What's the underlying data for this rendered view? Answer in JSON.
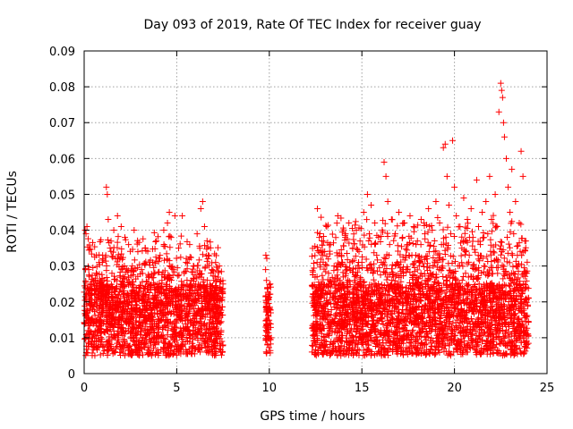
{
  "chart_data": {
    "type": "scatter",
    "title": "Day 093 of 2019, Rate Of TEC Index for receiver guay",
    "xlabel": "GPS time / hours",
    "ylabel": "ROTI / TECUs",
    "xlim": [
      0,
      25
    ],
    "ylim": [
      0,
      0.09
    ],
    "xticks": [
      0,
      5,
      10,
      15,
      20,
      25
    ],
    "xtick_labels": [
      "0",
      "5",
      "10",
      "15",
      "20",
      "25"
    ],
    "yticks": [
      0,
      0.01,
      0.02,
      0.03,
      0.04,
      0.05,
      0.06,
      0.07,
      0.08,
      0.09
    ],
    "ytick_labels": [
      "0",
      "0.01",
      "0.02",
      "0.03",
      "0.04",
      "0.05",
      "0.06",
      "0.07",
      "0.08",
      "0.09"
    ],
    "grid": true,
    "marker": "+",
    "marker_color": "#ff0000",
    "series": [
      {
        "name": "ROTI",
        "points": [
          [
            0.05,
            0.04
          ],
          [
            0.1,
            0.039
          ],
          [
            0.15,
            0.041
          ],
          [
            0.2,
            0.012
          ],
          [
            0.25,
            0.029
          ],
          [
            0.3,
            0.018
          ],
          [
            0.4,
            0.022
          ],
          [
            0.5,
            0.011
          ],
          [
            0.6,
            0.026
          ],
          [
            0.7,
            0.015
          ],
          [
            0.8,
            0.031
          ],
          [
            0.9,
            0.02
          ],
          [
            1.0,
            0.033
          ],
          [
            1.1,
            0.024
          ],
          [
            1.2,
            0.052
          ],
          [
            1.25,
            0.05
          ],
          [
            1.3,
            0.043
          ],
          [
            1.4,
            0.035
          ],
          [
            1.5,
            0.028
          ],
          [
            1.6,
            0.04
          ],
          [
            1.7,
            0.019
          ],
          [
            1.8,
            0.044
          ],
          [
            1.9,
            0.032
          ],
          [
            2.0,
            0.041
          ],
          [
            2.1,
            0.027
          ],
          [
            2.2,
            0.038
          ],
          [
            2.3,
            0.014
          ],
          [
            2.4,
            0.036
          ],
          [
            2.5,
            0.025
          ],
          [
            2.6,
            0.03
          ],
          [
            2.7,
            0.04
          ],
          [
            2.8,
            0.021
          ],
          [
            2.9,
            0.034
          ],
          [
            3.0,
            0.016
          ],
          [
            3.1,
            0.029
          ],
          [
            3.2,
            0.023
          ],
          [
            3.3,
            0.035
          ],
          [
            3.4,
            0.012
          ],
          [
            3.5,
            0.027
          ],
          [
            3.6,
            0.018
          ],
          [
            3.7,
            0.031
          ],
          [
            3.8,
            0.024
          ],
          [
            3.9,
            0.037
          ],
          [
            4.0,
            0.015
          ],
          [
            4.1,
            0.033
          ],
          [
            4.2,
            0.026
          ],
          [
            4.3,
            0.04
          ],
          [
            4.4,
            0.02
          ],
          [
            4.5,
            0.042
          ],
          [
            4.6,
            0.045
          ],
          [
            4.7,
            0.038
          ],
          [
            4.8,
            0.029
          ],
          [
            4.9,
            0.044
          ],
          [
            5.0,
            0.017
          ],
          [
            5.1,
            0.035
          ],
          [
            5.2,
            0.022
          ],
          [
            5.3,
            0.044
          ],
          [
            5.4,
            0.028
          ],
          [
            5.5,
            0.031
          ],
          [
            5.6,
            0.013
          ],
          [
            5.7,
            0.036
          ],
          [
            5.8,
            0.024
          ],
          [
            5.9,
            0.03
          ],
          [
            6.0,
            0.019
          ],
          [
            6.1,
            0.039
          ],
          [
            6.2,
            0.027
          ],
          [
            6.3,
            0.046
          ],
          [
            6.4,
            0.048
          ],
          [
            6.5,
            0.041
          ],
          [
            6.6,
            0.021
          ],
          [
            6.7,
            0.033
          ],
          [
            6.8,
            0.015
          ],
          [
            6.9,
            0.029
          ],
          [
            7.0,
            0.026
          ],
          [
            7.1,
            0.031
          ],
          [
            7.2,
            0.018
          ],
          [
            7.3,
            0.03
          ],
          [
            7.4,
            0.012
          ],
          [
            7.5,
            0.025
          ],
          [
            9.8,
            0.029
          ],
          [
            9.85,
            0.026
          ],
          [
            9.9,
            0.024
          ],
          [
            9.95,
            0.021
          ],
          [
            10.0,
            0.018
          ],
          [
            10.05,
            0.025
          ],
          [
            10.1,
            0.01
          ],
          [
            9.9,
            0.008
          ],
          [
            10.0,
            0.014
          ],
          [
            9.95,
            0.016
          ],
          [
            12.3,
            0.006
          ],
          [
            12.4,
            0.021
          ],
          [
            12.5,
            0.017
          ],
          [
            12.6,
            0.046
          ],
          [
            12.7,
            0.038
          ],
          [
            12.8,
            0.025
          ],
          [
            12.9,
            0.034
          ],
          [
            13.0,
            0.019
          ],
          [
            13.1,
            0.041
          ],
          [
            13.2,
            0.028
          ],
          [
            13.3,
            0.036
          ],
          [
            13.4,
            0.015
          ],
          [
            13.5,
            0.03
          ],
          [
            13.6,
            0.023
          ],
          [
            13.7,
            0.044
          ],
          [
            13.8,
            0.026
          ],
          [
            13.9,
            0.033
          ],
          [
            14.0,
            0.02
          ],
          [
            14.1,
            0.038
          ],
          [
            14.2,
            0.029
          ],
          [
            14.3,
            0.042
          ],
          [
            14.4,
            0.017
          ],
          [
            14.5,
            0.035
          ],
          [
            14.6,
            0.026
          ],
          [
            14.7,
            0.04
          ],
          [
            14.8,
            0.022
          ],
          [
            14.9,
            0.037
          ],
          [
            15.0,
            0.031
          ],
          [
            15.1,
            0.045
          ],
          [
            15.2,
            0.024
          ],
          [
            15.3,
            0.05
          ],
          [
            15.4,
            0.039
          ],
          [
            15.5,
            0.047
          ],
          [
            15.6,
            0.028
          ],
          [
            15.7,
            0.042
          ],
          [
            15.8,
            0.033
          ],
          [
            15.9,
            0.038
          ],
          [
            16.0,
            0.021
          ],
          [
            16.1,
            0.04
          ],
          [
            16.2,
            0.059
          ],
          [
            16.3,
            0.055
          ],
          [
            16.4,
            0.048
          ],
          [
            16.5,
            0.036
          ],
          [
            16.6,
            0.043
          ],
          [
            16.7,
            0.027
          ],
          [
            16.8,
            0.039
          ],
          [
            16.9,
            0.031
          ],
          [
            17.0,
            0.045
          ],
          [
            17.1,
            0.024
          ],
          [
            17.2,
            0.038
          ],
          [
            17.3,
            0.042
          ],
          [
            17.4,
            0.029
          ],
          [
            17.5,
            0.036
          ],
          [
            17.6,
            0.044
          ],
          [
            17.7,
            0.033
          ],
          [
            17.8,
            0.041
          ],
          [
            17.9,
            0.026
          ],
          [
            18.0,
            0.037
          ],
          [
            18.1,
            0.03
          ],
          [
            18.2,
            0.043
          ],
          [
            18.3,
            0.022
          ],
          [
            18.4,
            0.039
          ],
          [
            18.5,
            0.032
          ],
          [
            18.6,
            0.046
          ],
          [
            18.7,
            0.028
          ],
          [
            18.8,
            0.04
          ],
          [
            18.9,
            0.034
          ],
          [
            19.0,
            0.048
          ],
          [
            19.1,
            0.031
          ],
          [
            19.2,
            0.042
          ],
          [
            19.3,
            0.036
          ],
          [
            19.4,
            0.063
          ],
          [
            19.5,
            0.064
          ],
          [
            19.6,
            0.055
          ],
          [
            19.7,
            0.047
          ],
          [
            19.8,
            0.039
          ],
          [
            19.9,
            0.065
          ],
          [
            20.0,
            0.052
          ],
          [
            20.1,
            0.044
          ],
          [
            20.2,
            0.03
          ],
          [
            20.3,
            0.041
          ],
          [
            20.4,
            0.035
          ],
          [
            20.5,
            0.049
          ],
          [
            20.6,
            0.028
          ],
          [
            20.7,
            0.043
          ],
          [
            20.8,
            0.033
          ],
          [
            20.9,
            0.046
          ],
          [
            21.0,
            0.038
          ],
          [
            21.1,
            0.029
          ],
          [
            21.2,
            0.054
          ],
          [
            21.3,
            0.041
          ],
          [
            21.4,
            0.036
          ],
          [
            21.5,
            0.045
          ],
          [
            21.6,
            0.03
          ],
          [
            21.7,
            0.048
          ],
          [
            21.8,
            0.039
          ],
          [
            21.9,
            0.055
          ],
          [
            22.0,
            0.043
          ],
          [
            22.1,
            0.034
          ],
          [
            22.2,
            0.05
          ],
          [
            22.3,
            0.041
          ],
          [
            22.4,
            0.073
          ],
          [
            22.5,
            0.081
          ],
          [
            22.55,
            0.079
          ],
          [
            22.6,
            0.077
          ],
          [
            22.65,
            0.07
          ],
          [
            22.7,
            0.066
          ],
          [
            22.8,
            0.06
          ],
          [
            22.9,
            0.052
          ],
          [
            23.0,
            0.045
          ],
          [
            23.1,
            0.057
          ],
          [
            23.2,
            0.039
          ],
          [
            23.3,
            0.048
          ],
          [
            23.4,
            0.033
          ],
          [
            23.5,
            0.042
          ],
          [
            23.6,
            0.062
          ],
          [
            23.7,
            0.055
          ],
          [
            23.8,
            0.037
          ],
          [
            23.9,
            0.028
          ],
          [
            24.0,
            0.021
          ]
        ]
      }
    ],
    "density_note": "dense band of points between roughly 0.005 and 0.03 ROTI over 0-7.5 h, 9.8-10.1 h and 12.3-24 h"
  }
}
